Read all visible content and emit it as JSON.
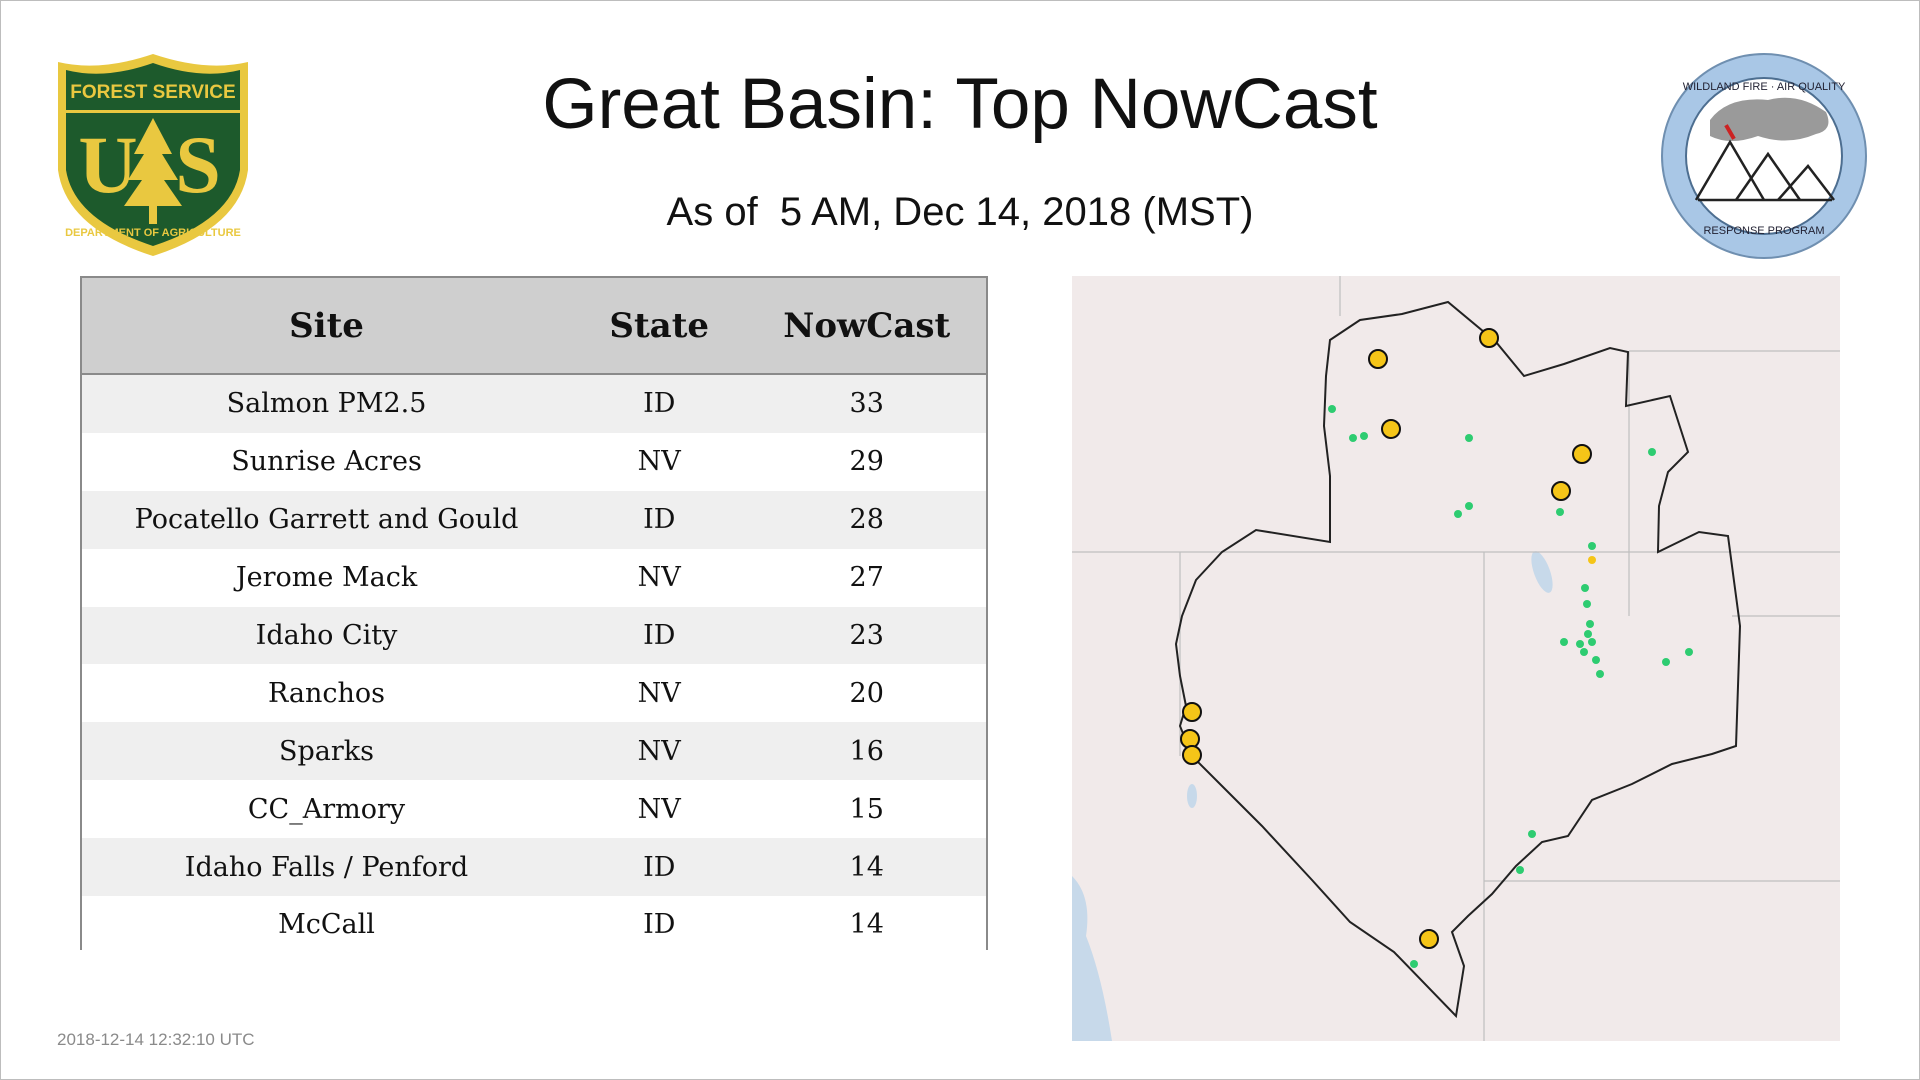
{
  "header": {
    "title": "Great Basin: Top NowCast",
    "subtitle": "As of  5 AM, Dec 14, 2018 (MST)"
  },
  "logos": {
    "usfs": {
      "line_top": "FOREST SERVICE",
      "letters": "US",
      "line_bottom": "DEPARTMENT OF AGRICULTURE"
    },
    "program": {
      "line_top": "WILDLAND FIRE · AIR QUALITY",
      "line_bottom": "RESPONSE PROGRAM"
    }
  },
  "table": {
    "headers": {
      "site": "Site",
      "state": "State",
      "nowcast": "NowCast"
    },
    "rows": [
      {
        "site": "Salmon PM2.5",
        "state": "ID",
        "nowcast": "33"
      },
      {
        "site": "Sunrise Acres",
        "state": "NV",
        "nowcast": "29"
      },
      {
        "site": "Pocatello Garrett and Gould",
        "state": "ID",
        "nowcast": "28"
      },
      {
        "site": "Jerome Mack",
        "state": "NV",
        "nowcast": "27"
      },
      {
        "site": "Idaho City",
        "state": "ID",
        "nowcast": "23"
      },
      {
        "site": "Ranchos",
        "state": "NV",
        "nowcast": "20"
      },
      {
        "site": "Sparks",
        "state": "NV",
        "nowcast": "16"
      },
      {
        "site": "CC_Armory",
        "state": "NV",
        "nowcast": "15"
      },
      {
        "site": "Idaho Falls / Penford",
        "state": "ID",
        "nowcast": "14"
      },
      {
        "site": "McCall",
        "state": "ID",
        "nowcast": "14"
      }
    ]
  },
  "map": {
    "colors": {
      "good": "#2ecc71",
      "moderate": "#f5c518",
      "marker_outline": "#111111",
      "land": "#f2ecec",
      "water": "#c7d9ea"
    }
  },
  "footer": {
    "timestamp": "2018-12-14 12:32:10 UTC"
  }
}
